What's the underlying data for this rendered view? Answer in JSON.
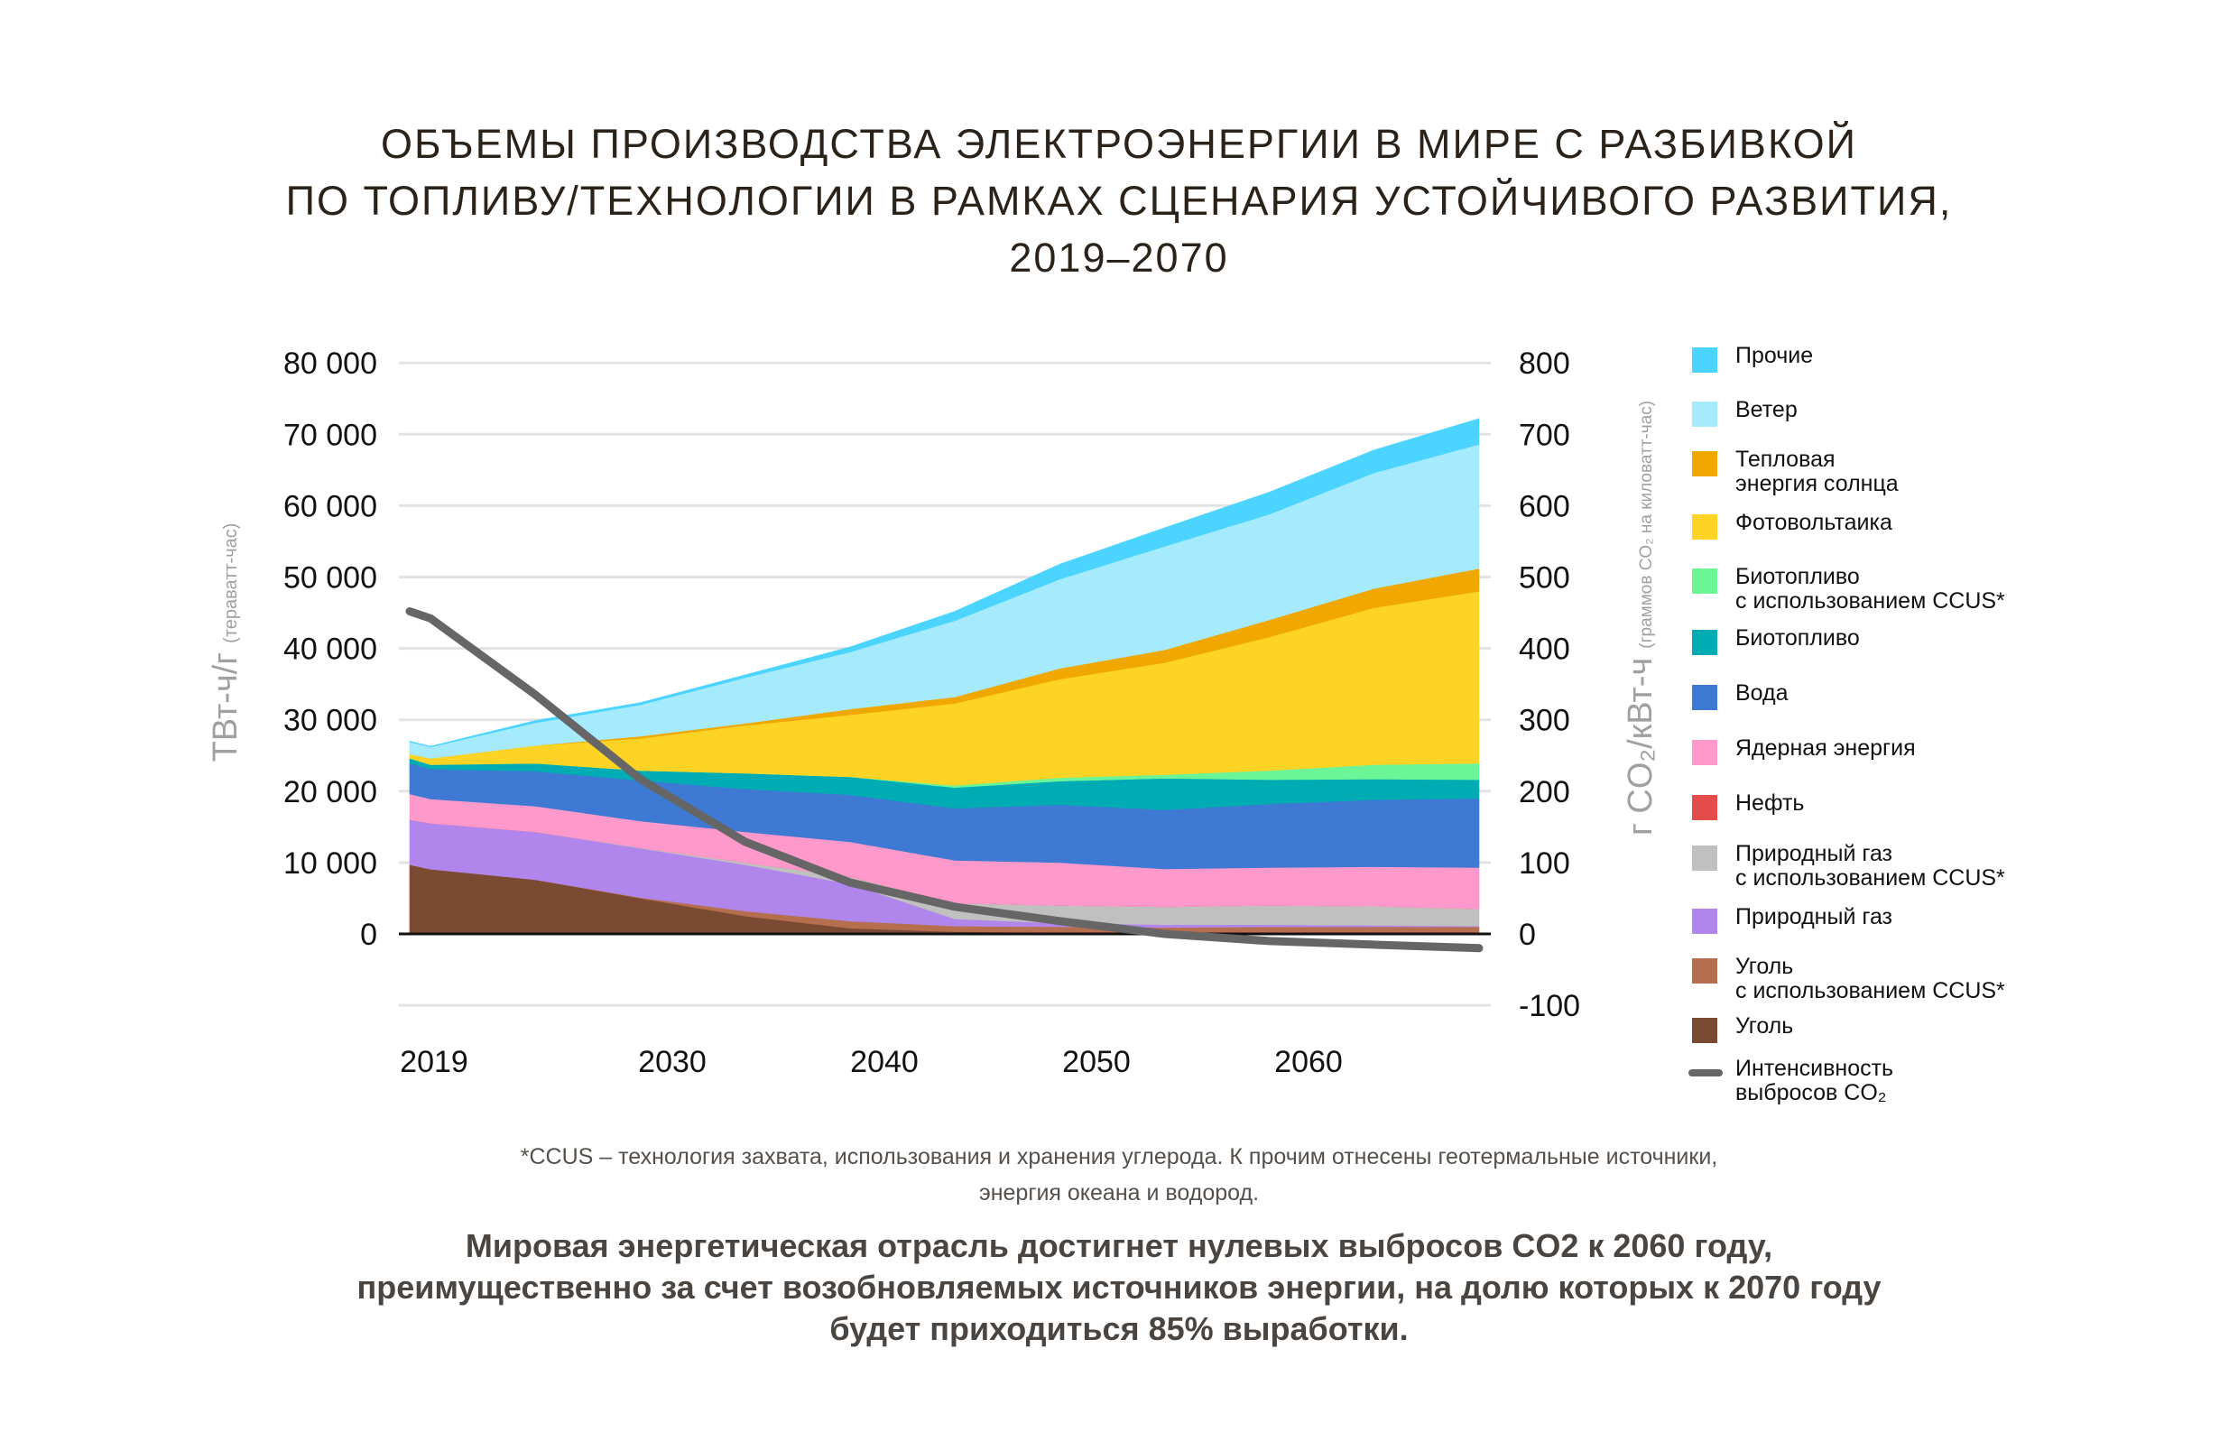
{
  "title": {
    "lines": [
      "ОБЪЕМЫ ПРОИЗВОДСТВА ЭЛЕКТРОЭНЕРГИИ В МИРЕ С РАЗБИВКОЙ",
      "ПО ТОПЛИВУ/ТЕХНОЛОГИИ В РАМКАХ СЦЕНАРИЯ УСТОЙЧИВОГО РАЗВИТИЯ,",
      "2019–2070"
    ]
  },
  "chart_data": {
    "type": "area",
    "stacked": true,
    "title": "ОБЪЕМЫ ПРОИЗВОДСТВА ЭЛЕКТРОЭНЕРГИИ В МИРЕ С РАЗБИВКОЙ ПО ТОПЛИВУ/ТЕХНОЛОГИИ В РАМКАХ СЦЕНАРИЯ УСТОЙЧИВОГО РАЗВИТИЯ, 2019–2070",
    "x": [
      2019,
      2020,
      2025,
      2030,
      2035,
      2040,
      2045,
      2050,
      2055,
      2060,
      2065,
      2070
    ],
    "xlim": [
      2019,
      2070
    ],
    "xticks": [
      2019,
      2030,
      2040,
      2050,
      2060
    ],
    "xtick_labels": [
      "2019",
      "2030",
      "2040",
      "2050",
      "2060"
    ],
    "ylabel_main": "ТВт-ч/г",
    "ylabel_sub": "(тераватт-час)",
    "ylim": [
      -10000,
      80000
    ],
    "yticks": [
      0,
      10000,
      20000,
      30000,
      40000,
      50000,
      60000,
      70000,
      80000
    ],
    "ytick_labels": [
      "0",
      "10 000",
      "20 000",
      "30 000",
      "40 000",
      "50 000",
      "60 000",
      "70 000",
      "80 000"
    ],
    "y2label_main": "г CO₂/кВт-ч",
    "y2label_sub": "(граммов CO₂ на киловатт-час)",
    "y2lim": [
      -100,
      800
    ],
    "y2ticks": [
      -100,
      0,
      100,
      200,
      300,
      400,
      500,
      600,
      700,
      800
    ],
    "y2tick_labels": [
      "-100",
      "0",
      "100",
      "200",
      "300",
      "400",
      "500",
      "600",
      "700",
      "800"
    ],
    "grid": true,
    "legend_position": "right",
    "series": [
      {
        "name": "Уголь",
        "color": "#7a4a32",
        "values": [
          9700,
          9070,
          7600,
          5000,
          2500,
          800,
          300,
          200,
          100,
          100,
          100,
          100
        ]
      },
      {
        "name": "Уголь с использованием CCUS*",
        "color": "#b56e4e",
        "values": [
          0,
          0,
          0,
          100,
          700,
          1000,
          800,
          800,
          800,
          900,
          900,
          900
        ]
      },
      {
        "name": "Природный газ",
        "color": "#b186ec",
        "values": [
          6300,
          6430,
          6700,
          6900,
          6500,
          5200,
          1000,
          500,
          400,
          300,
          200,
          100
        ]
      },
      {
        "name": "Природный газ с использованием CCUS*",
        "color": "#c0c0c0",
        "values": [
          0,
          0,
          0,
          100,
          300,
          1000,
          2200,
          2500,
          2500,
          2700,
          2700,
          2400
        ]
      },
      {
        "name": "Нефть",
        "color": "#e44c4c",
        "values": [
          0,
          0,
          0,
          0,
          0,
          0,
          0,
          0,
          0,
          0,
          0,
          0
        ]
      },
      {
        "name": "Ядерная энергия",
        "color": "#ff99cc",
        "values": [
          3600,
          3400,
          3600,
          3700,
          4300,
          4900,
          6000,
          6000,
          5300,
          5300,
          5500,
          5800
        ]
      },
      {
        "name": "Вода",
        "color": "#3e7ad3",
        "values": [
          4300,
          4200,
          4900,
          5700,
          6000,
          6600,
          7300,
          8100,
          8300,
          8900,
          9400,
          9700
        ]
      },
      {
        "name": "Биотопливо",
        "color": "#00acb4",
        "values": [
          700,
          600,
          1100,
          1400,
          2200,
          2500,
          2900,
          3300,
          4400,
          3400,
          2900,
          2600
        ]
      },
      {
        "name": "Биотопливо с использованием CCUS*",
        "color": "#6bf597",
        "values": [
          0,
          0,
          0,
          0,
          0,
          0,
          300,
          500,
          500,
          1300,
          2000,
          2300
        ]
      },
      {
        "name": "Фотовольтаика",
        "color": "#fdd325",
        "values": [
          600,
          900,
          2500,
          4500,
          6700,
          8700,
          11500,
          13800,
          15700,
          18700,
          22000,
          24100
        ]
      },
      {
        "name": "Тепловая энергия солнца",
        "color": "#f0a800",
        "values": [
          0,
          0,
          0,
          300,
          300,
          800,
          900,
          1500,
          1800,
          2400,
          2700,
          3200
        ]
      },
      {
        "name": "Ветер",
        "color": "#a5eafd",
        "values": [
          1700,
          1600,
          3200,
          4400,
          6400,
          8000,
          10700,
          12500,
          14500,
          14800,
          16200,
          17400
        ]
      },
      {
        "name": "Прочие",
        "color": "#4bd4ff",
        "values": [
          100,
          100,
          300,
          300,
          400,
          700,
          1300,
          2100,
          2600,
          3100,
          3200,
          3600
        ]
      }
    ],
    "line_series": {
      "name": "Интенсивность выбросов CO₂",
      "axis": "right",
      "color": "#666666",
      "values": [
        452,
        442,
        335,
        217,
        129,
        72,
        38,
        18,
        0,
        -10,
        -15,
        -20
      ]
    }
  },
  "legend": {
    "items": [
      {
        "label_lines": [
          "Прочие"
        ],
        "color": "#4bd4ff",
        "kind": "swatch"
      },
      {
        "label_lines": [
          "Ветер"
        ],
        "color": "#a5eafd",
        "kind": "swatch"
      },
      {
        "label_lines": [
          "Тепловая",
          "энергия солнца"
        ],
        "color": "#f0a800",
        "kind": "swatch"
      },
      {
        "label_lines": [
          "Фотовольтаика"
        ],
        "color": "#fdd325",
        "kind": "swatch"
      },
      {
        "label_lines": [
          "Биотопливо",
          "с использованием CCUS*"
        ],
        "color": "#6bf597",
        "kind": "swatch"
      },
      {
        "label_lines": [
          "Биотопливо"
        ],
        "color": "#00acb4",
        "kind": "swatch"
      },
      {
        "label_lines": [
          "Вода"
        ],
        "color": "#3e7ad3",
        "kind": "swatch"
      },
      {
        "label_lines": [
          "Ядерная энергия"
        ],
        "color": "#ff99cc",
        "kind": "swatch"
      },
      {
        "label_lines": [
          "Нефть"
        ],
        "color": "#e44c4c",
        "kind": "swatch"
      },
      {
        "label_lines": [
          "Природный газ",
          "с использованием CCUS*"
        ],
        "color": "#c0c0c0",
        "kind": "swatch"
      },
      {
        "label_lines": [
          "Природный газ"
        ],
        "color": "#b186ec",
        "kind": "swatch"
      },
      {
        "label_lines": [
          "Уголь",
          "с использованием CCUS*"
        ],
        "color": "#b56e4e",
        "kind": "swatch"
      },
      {
        "label_lines": [
          "Уголь"
        ],
        "color": "#7a4a32",
        "kind": "swatch"
      },
      {
        "label_lines": [
          "Интенсивность",
          "выбросов CO₂"
        ],
        "color": "#666666",
        "kind": "line"
      }
    ]
  },
  "footnote": {
    "lines": [
      "*CCUS – технология захвата, использования и хранения углерода. К прочим отнесены геотермальные источники,",
      "энергия океана и водород."
    ]
  },
  "summary": {
    "lines": [
      "Мировая энергетическая отрасль достигнет нулевых выбросов CO2 к 2060 году,",
      "преимущественно за счет возобновляемых источников энергии, на долю которых к 2070 году",
      "будет приходиться 85% выработки."
    ]
  }
}
